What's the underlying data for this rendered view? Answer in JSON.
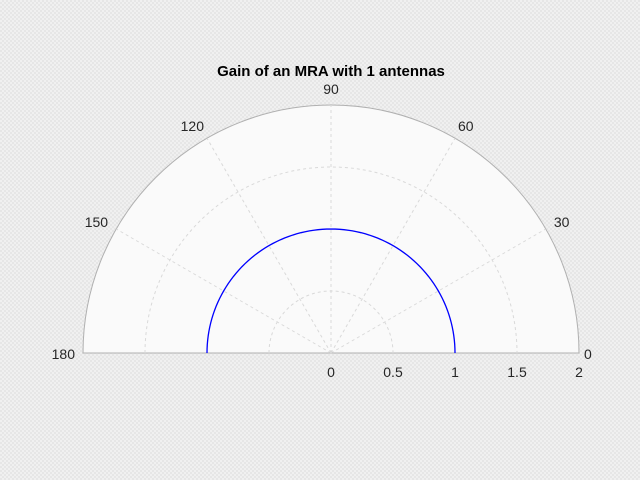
{
  "chart_data": {
    "type": "polar-line",
    "title": "Gain of an MRA with 1 antennas",
    "theta_range_deg": [
      0,
      180
    ],
    "r_range": [
      0,
      2
    ],
    "theta_ticks": [
      "0",
      "30",
      "60",
      "90",
      "120",
      "150",
      "180"
    ],
    "theta_tick_values": [
      0,
      30,
      60,
      90,
      120,
      150,
      180
    ],
    "r_ticks": [
      "0",
      "0.5",
      "1",
      "1.5",
      "2"
    ],
    "r_tick_values": [
      0,
      0.5,
      1,
      1.5,
      2
    ],
    "grid": true,
    "series": [
      {
        "color": "#0000ff",
        "theta_deg": [
          0,
          180
        ],
        "r": [
          1,
          1
        ]
      }
    ]
  }
}
